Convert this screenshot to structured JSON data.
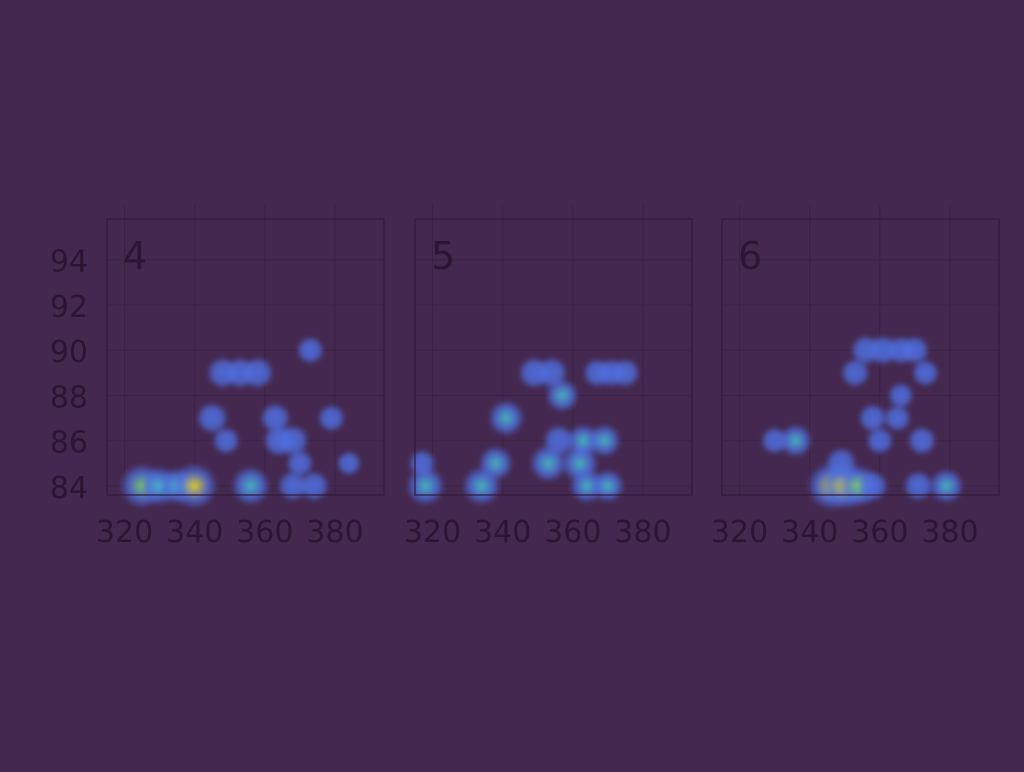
{
  "colors": {
    "background": "#44284f",
    "panel_border": "#2f1a3a",
    "grid": "#3a2245",
    "text": "#2a1633",
    "heat_low": "#4f6fe0",
    "heat_mid": "#44c7c7",
    "heat_high": "#7fe05a",
    "heat_peak": "#f2e21a"
  },
  "chart_data": {
    "type": "heatmap",
    "title": "",
    "xlabel": "",
    "ylabel": "",
    "xlim": [
      315,
      394
    ],
    "ylim": [
      83.6,
      95.8
    ],
    "x_ticks": [
      "320",
      "340",
      "360",
      "380"
    ],
    "x_tick_values": [
      320,
      340,
      360,
      380
    ],
    "y_ticks": [
      "94",
      "92",
      "90",
      "88",
      "86",
      "84"
    ],
    "y_tick_values": [
      94,
      92,
      90,
      88,
      86,
      84
    ],
    "grid": true,
    "panels": [
      {
        "label": "4",
        "points": [
          [
            325,
            84,
            0.9
          ],
          [
            330,
            84,
            0.7
          ],
          [
            335,
            84,
            0.6
          ],
          [
            340,
            84,
            0.95
          ],
          [
            356,
            84,
            0.7
          ],
          [
            345,
            87,
            0.45
          ],
          [
            349,
            86,
            0.3
          ],
          [
            348,
            89,
            0.45
          ],
          [
            353,
            89,
            0.45
          ],
          [
            358,
            89,
            0.45
          ],
          [
            363,
            87,
            0.4
          ],
          [
            364,
            86,
            0.45
          ],
          [
            368,
            86,
            0.45
          ],
          [
            370,
            85,
            0.3
          ],
          [
            368,
            84,
            0.4
          ],
          [
            374,
            84,
            0.4
          ],
          [
            373,
            90,
            0.3
          ],
          [
            379,
            87,
            0.3
          ],
          [
            384,
            85,
            0.2
          ]
        ]
      },
      {
        "label": "5",
        "points": [
          [
            318,
            84,
            0.7
          ],
          [
            317,
            85,
            0.3
          ],
          [
            334,
            84,
            0.7
          ],
          [
            338,
            85,
            0.55
          ],
          [
            341,
            87,
            0.6
          ],
          [
            349,
            89,
            0.45
          ],
          [
            354,
            89,
            0.45
          ],
          [
            357,
            88,
            0.5
          ],
          [
            353,
            85,
            0.65
          ],
          [
            356,
            86,
            0.45
          ],
          [
            362,
            85,
            0.65
          ],
          [
            363,
            86,
            0.5
          ],
          [
            369,
            86,
            0.5
          ],
          [
            364,
            84,
            0.55
          ],
          [
            370,
            84,
            0.5
          ],
          [
            367,
            89,
            0.35
          ],
          [
            371,
            89,
            0.35
          ],
          [
            375,
            89,
            0.35
          ]
        ]
      },
      {
        "label": "6",
        "points": [
          [
            330,
            86,
            0.3
          ],
          [
            336,
            86,
            0.5
          ],
          [
            346,
            84,
            1.0
          ],
          [
            350,
            84,
            1.0
          ],
          [
            354,
            84,
            0.8
          ],
          [
            349,
            85,
            0.45
          ],
          [
            358,
            84,
            0.4
          ],
          [
            353,
            89,
            0.35
          ],
          [
            356,
            90,
            0.4
          ],
          [
            361,
            90,
            0.4
          ],
          [
            366,
            90,
            0.35
          ],
          [
            370,
            90,
            0.35
          ],
          [
            373,
            89,
            0.3
          ],
          [
            358,
            87,
            0.35
          ],
          [
            360,
            86,
            0.3
          ],
          [
            365,
            87,
            0.3
          ],
          [
            366,
            88,
            0.25
          ],
          [
            372,
            86,
            0.35
          ],
          [
            371,
            84,
            0.4
          ],
          [
            379,
            84,
            0.55
          ]
        ]
      }
    ]
  }
}
